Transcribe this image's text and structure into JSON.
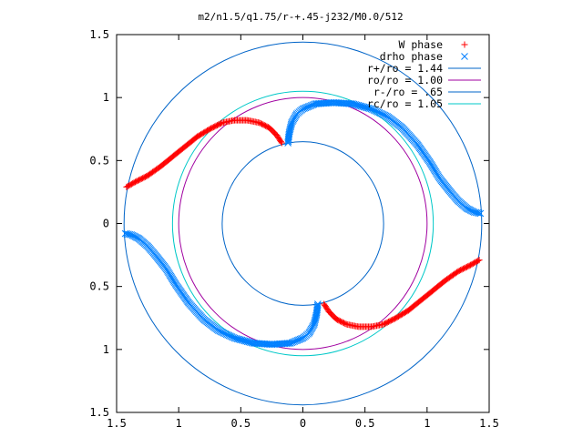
{
  "chart_data": {
    "type": "scatter",
    "title": "m2/n1.5/q1.75/r-+.45-j232/M0.0/512",
    "xlabel": "",
    "ylabel": "",
    "xlim": [
      -1.5,
      1.5
    ],
    "ylim": [
      -1.5,
      1.5
    ],
    "x_ticks": [
      "1.5",
      "1",
      "0.5",
      "0",
      "0.5",
      "1",
      "1.5"
    ],
    "y_ticks": [
      "1.5",
      "1",
      "0.5",
      "0",
      "0.5",
      "1",
      "1.5"
    ],
    "grid": false,
    "legend_position": "top-right",
    "series": [
      {
        "name": "W phase",
        "marker": "plus",
        "color": "#ff0000",
        "branches": [
          {
            "x": [
              -1.42,
              -1.35,
              -1.25,
              -1.15,
              -1.05,
              -0.95,
              -0.85,
              -0.75,
              -0.65,
              -0.55,
              -0.45,
              -0.35,
              -0.27,
              -0.21,
              -0.17
            ],
            "y": [
              0.29,
              0.33,
              0.38,
              0.45,
              0.53,
              0.61,
              0.69,
              0.75,
              0.8,
              0.82,
              0.82,
              0.8,
              0.76,
              0.7,
              0.64
            ]
          },
          {
            "x": [
              1.42,
              1.35,
              1.25,
              1.15,
              1.05,
              0.95,
              0.85,
              0.75,
              0.65,
              0.55,
              0.45,
              0.35,
              0.27,
              0.21,
              0.17
            ],
            "y": [
              -0.29,
              -0.33,
              -0.38,
              -0.45,
              -0.53,
              -0.61,
              -0.69,
              -0.75,
              -0.8,
              -0.82,
              -0.82,
              -0.8,
              -0.76,
              -0.7,
              -0.64
            ]
          }
        ]
      },
      {
        "name": "drho phase",
        "marker": "cross",
        "color": "#0080ff",
        "branches": [
          {
            "x": [
              -0.12,
              -0.11,
              -0.09,
              -0.05,
              0.0,
              0.1,
              0.25,
              0.4,
              0.55,
              0.68,
              0.8,
              0.92,
              1.02,
              1.1,
              1.18,
              1.25,
              1.32,
              1.38,
              1.43
            ],
            "y": [
              0.64,
              0.72,
              0.8,
              0.87,
              0.91,
              0.95,
              0.96,
              0.95,
              0.91,
              0.85,
              0.76,
              0.63,
              0.49,
              0.36,
              0.26,
              0.18,
              0.12,
              0.09,
              0.08
            ]
          },
          {
            "x": [
              0.12,
              0.11,
              0.09,
              0.05,
              0.0,
              -0.1,
              -0.25,
              -0.4,
              -0.55,
              -0.68,
              -0.8,
              -0.92,
              -1.02,
              -1.1,
              -1.18,
              -1.25,
              -1.32,
              -1.38,
              -1.43
            ],
            "y": [
              -0.64,
              -0.72,
              -0.8,
              -0.87,
              -0.91,
              -0.95,
              -0.96,
              -0.95,
              -0.91,
              -0.85,
              -0.76,
              -0.63,
              -0.49,
              -0.36,
              -0.26,
              -0.18,
              -0.12,
              -0.09,
              -0.08
            ]
          }
        ]
      },
      {
        "name": "r+/ro = 1.44",
        "type": "circle",
        "radius": 1.44,
        "color": "#0064c8"
      },
      {
        "name": "ro/ro = 1.00",
        "type": "circle",
        "radius": 1.0,
        "color": "#a000a0"
      },
      {
        "name": "r-/ro = .65",
        "type": "circle",
        "radius": 0.65,
        "color": "#0064c8"
      },
      {
        "name": "rc/ro = 1.05",
        "type": "circle",
        "radius": 1.05,
        "color": "#00c8c8"
      }
    ]
  }
}
